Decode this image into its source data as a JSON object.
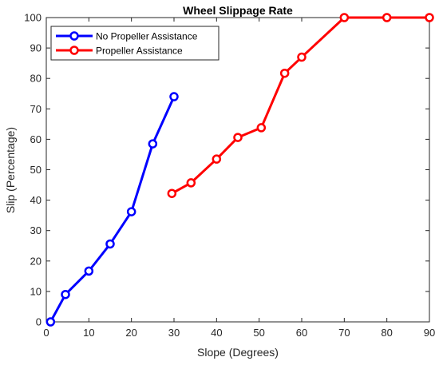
{
  "chart_data": {
    "type": "line",
    "title": "Wheel Slippage Rate",
    "xlabel": "Slope (Degrees)",
    "ylabel": "Slip (Percentage)",
    "xlim": [
      0,
      90
    ],
    "ylim": [
      0,
      100
    ],
    "xticks": [
      0,
      10,
      20,
      30,
      40,
      50,
      60,
      70,
      80,
      90
    ],
    "yticks": [
      0,
      10,
      20,
      30,
      40,
      50,
      60,
      70,
      80,
      90,
      100
    ],
    "grid": false,
    "legend_position": "top-left",
    "series": [
      {
        "name": "No Propeller Assistance",
        "color": "#0000ff",
        "marker": "circle",
        "x": [
          1,
          4.5,
          10,
          15,
          20,
          25,
          30
        ],
        "y": [
          0,
          9,
          16.7,
          25.6,
          36.2,
          58.5,
          74
        ]
      },
      {
        "name": "Propeller Assistance",
        "color": "#ff0000",
        "marker": "circle",
        "x": [
          29.5,
          34,
          40,
          45,
          50.5,
          56,
          60,
          70,
          80,
          90
        ],
        "y": [
          42.2,
          45.7,
          53.5,
          60.6,
          63.8,
          81.7,
          87,
          100,
          100,
          100
        ]
      }
    ]
  }
}
